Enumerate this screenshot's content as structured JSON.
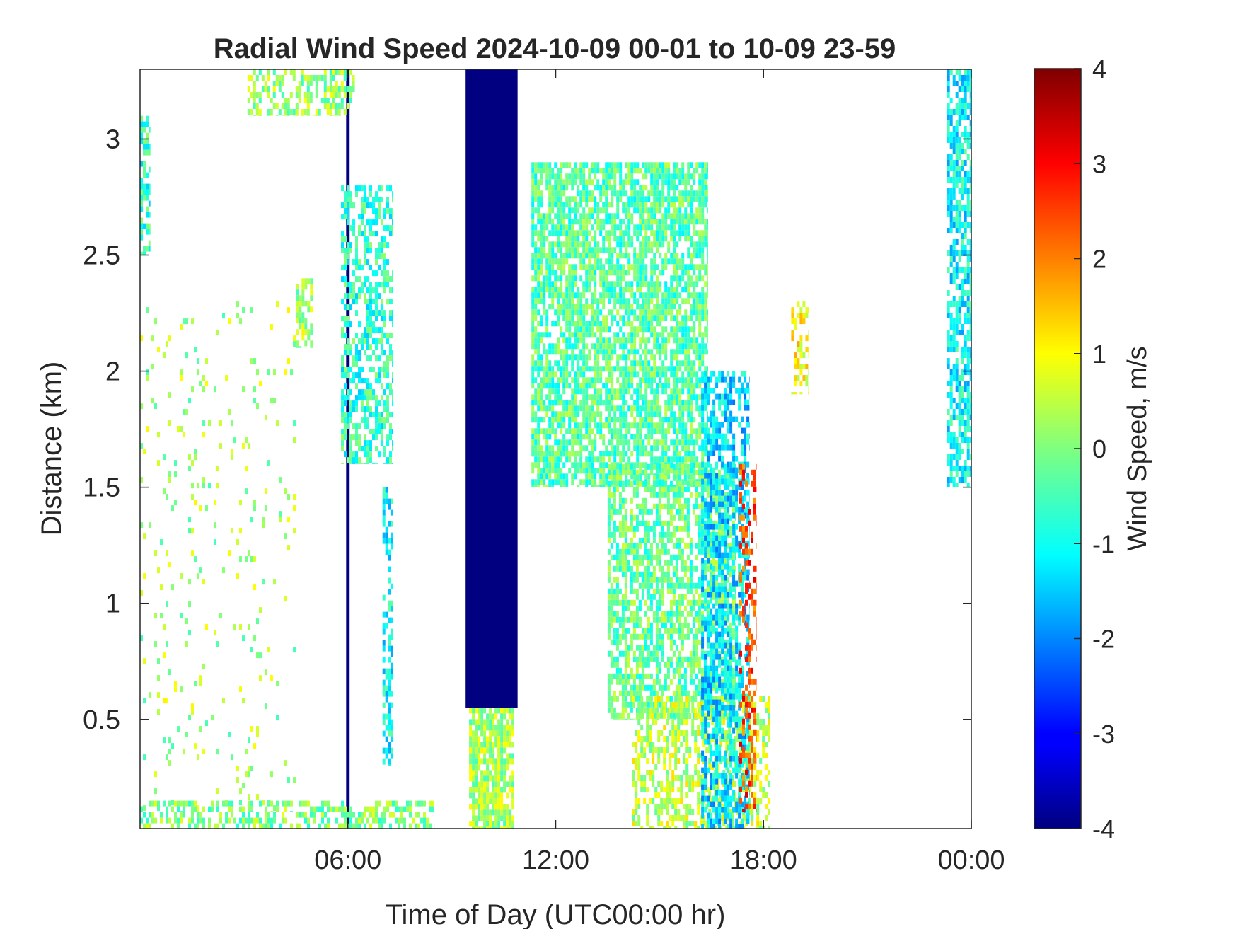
{
  "chart_data": {
    "type": "heatmap",
    "title": "Radial Wind Speed 2024-10-09 00-01 to 10-09 23-59",
    "xlabel": "Time of Day (UTC00:00 hr)",
    "ylabel": "Distance (km)",
    "xlim_hours": [
      0,
      24
    ],
    "ylim_km": [
      0.03,
      3.3
    ],
    "x_ticks": [
      {
        "hour": 6,
        "label": "06:00"
      },
      {
        "hour": 12,
        "label": "12:00"
      },
      {
        "hour": 18,
        "label": "18:00"
      },
      {
        "hour": 24,
        "label": "00:00"
      }
    ],
    "y_ticks": [
      {
        "value": 0.5,
        "label": "0.5"
      },
      {
        "value": 1,
        "label": "1"
      },
      {
        "value": 1.5,
        "label": "1.5"
      },
      {
        "value": 2,
        "label": "2"
      },
      {
        "value": 2.5,
        "label": "2.5"
      },
      {
        "value": 3,
        "label": "3"
      }
    ],
    "colorbar": {
      "label": "Wind Speed, m/s",
      "colormap": "jet",
      "clim": [
        -4,
        4
      ],
      "ticks": [
        {
          "value": 4,
          "label": "4"
        },
        {
          "value": 3,
          "label": "3"
        },
        {
          "value": 2,
          "label": "2"
        },
        {
          "value": 1,
          "label": "1"
        },
        {
          "value": 0,
          "label": "0"
        },
        {
          "value": -1,
          "label": "-1"
        },
        {
          "value": -2,
          "label": "-2"
        },
        {
          "value": -3,
          "label": "-3"
        },
        {
          "value": -4,
          "label": "-4"
        }
      ]
    },
    "grid": false,
    "regions": [
      {
        "t0": 9.4,
        "t1": 10.9,
        "d0": 0.55,
        "d1": 3.3,
        "speed": -4,
        "density": 1.0
      },
      {
        "t0": 5.95,
        "t1": 6.05,
        "d0": 0.03,
        "d1": 3.3,
        "speed": -4,
        "density": 1.0
      },
      {
        "t0": 9.5,
        "t1": 10.8,
        "d0": 0.03,
        "d1": 0.55,
        "speed": 0.3,
        "density": 0.85
      },
      {
        "t0": 11.3,
        "t1": 16.4,
        "d0": 1.5,
        "d1": 2.9,
        "speed": -0.3,
        "density": 0.75
      },
      {
        "t0": 13.5,
        "t1": 17.2,
        "d0": 0.5,
        "d1": 1.6,
        "speed": -0.2,
        "density": 0.65
      },
      {
        "t0": 14.2,
        "t1": 18.2,
        "d0": 0.03,
        "d1": 0.6,
        "speed": 0.5,
        "density": 0.5
      },
      {
        "t0": 16.2,
        "t1": 17.6,
        "d0": 0.03,
        "d1": 2.0,
        "speed": -1.3,
        "density": 0.6
      },
      {
        "t0": 17.3,
        "t1": 17.8,
        "d0": 0.1,
        "d1": 1.6,
        "speed": 2.5,
        "density": 0.35
      },
      {
        "t0": 5.8,
        "t1": 7.3,
        "d0": 1.6,
        "d1": 2.8,
        "speed": -0.6,
        "density": 0.55
      },
      {
        "t0": 4.5,
        "t1": 5.0,
        "d0": 2.1,
        "d1": 2.4,
        "speed": 0.3,
        "density": 0.7
      },
      {
        "t0": 23.3,
        "t1": 24.0,
        "d0": 1.5,
        "d1": 3.3,
        "speed": -1.0,
        "density": 0.7
      },
      {
        "t0": 0.0,
        "t1": 0.3,
        "d0": 2.5,
        "d1": 3.1,
        "speed": -0.6,
        "density": 0.6
      },
      {
        "t0": 3.1,
        "t1": 6.2,
        "d0": 3.1,
        "d1": 3.3,
        "speed": 0.2,
        "density": 0.5
      },
      {
        "t0": 0.0,
        "t1": 8.5,
        "d0": 0.03,
        "d1": 0.15,
        "speed": 0.0,
        "density": 0.5
      },
      {
        "t0": 7.0,
        "t1": 7.3,
        "d0": 0.3,
        "d1": 1.5,
        "speed": -1.0,
        "density": 0.5
      },
      {
        "t0": 18.8,
        "t1": 19.3,
        "d0": 1.9,
        "d1": 2.3,
        "speed": 1.0,
        "density": 0.4
      },
      {
        "t0": 0.0,
        "t1": 4.5,
        "d0": 0.1,
        "d1": 2.3,
        "speed": 0.3,
        "density": 0.06
      }
    ]
  }
}
